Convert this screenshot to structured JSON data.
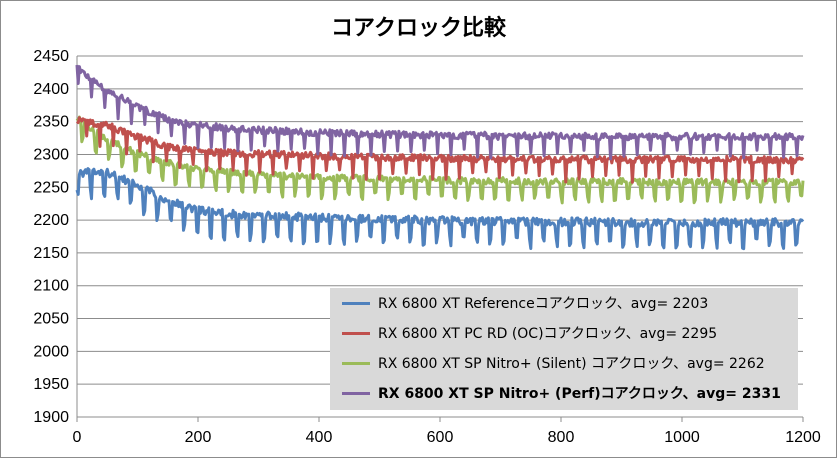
{
  "chart_data": {
    "type": "line",
    "title": "コアクロック比較",
    "xlabel": "",
    "ylabel": "",
    "xlim": [
      0,
      1200
    ],
    "ylim": [
      1900,
      2450
    ],
    "x_ticks": [
      "0",
      "200",
      "400",
      "600",
      "800",
      "1000",
      "1200"
    ],
    "y_ticks": [
      "1900",
      "1950",
      "2000",
      "2050",
      "2100",
      "2150",
      "2200",
      "2250",
      "2300",
      "2350",
      "2400",
      "2450"
    ],
    "grid": "horizontal",
    "legend_position": "bottom-right",
    "series": [
      {
        "name": "RX 6800 XT Referenceコアクロック、avg= 2203",
        "color": "#4f81bd",
        "values": [
          2270,
          2270,
          2250,
          2228,
          2213,
          2207,
          2205,
          2203,
          2201,
          2200,
          2199,
          2198,
          2197,
          2196,
          2196,
          2195,
          2195,
          2195,
          2194,
          2194,
          2194,
          2194,
          2194,
          2194,
          2194
        ],
        "amplitude": 35,
        "bold": false
      },
      {
        "name": "RX 6800 XT PC RD (OC)コアクロック、avg= 2295",
        "color": "#c0504d",
        "values": [
          2350,
          2342,
          2325,
          2310,
          2303,
          2300,
          2299,
          2297,
          2296,
          2295,
          2294,
          2293,
          2292,
          2292,
          2291,
          2291,
          2291,
          2290,
          2290,
          2290,
          2290,
          2290,
          2290,
          2290,
          2290
        ],
        "amplitude": 30,
        "bold": false
      },
      {
        "name": "RX 6800 XT SP Nitro+ (Silent) コアクロック、avg= 2262",
        "color": "#9bbb59",
        "values": [
          2355,
          2320,
          2300,
          2285,
          2276,
          2272,
          2268,
          2265,
          2263,
          2262,
          2261,
          2260,
          2259,
          2258,
          2258,
          2257,
          2257,
          2257,
          2257,
          2256,
          2256,
          2256,
          2256,
          2256,
          2256
        ],
        "amplitude": 28,
        "bold": false
      },
      {
        "name": "RX 6800 XT SP Nitro+ (Perf)コアクロック、avg= 2331",
        "color": "#8064a2",
        "values": [
          2430,
          2395,
          2370,
          2352,
          2342,
          2338,
          2335,
          2333,
          2331,
          2330,
          2329,
          2328,
          2327,
          2327,
          2326,
          2326,
          2326,
          2325,
          2325,
          2325,
          2325,
          2325,
          2325,
          2325,
          2325
        ],
        "amplitude": 30,
        "bold": true
      }
    ]
  }
}
